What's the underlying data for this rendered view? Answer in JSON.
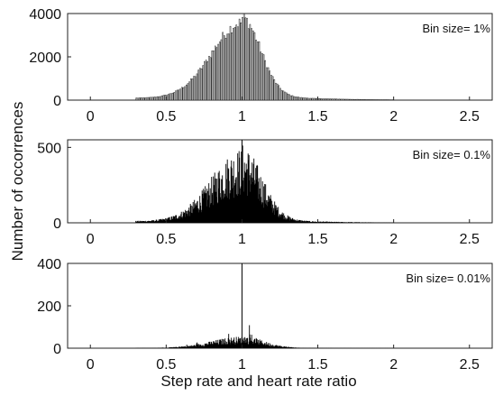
{
  "chart_data": [
    {
      "type": "bar",
      "annotation": "Bin size= 1%",
      "bin_width": 0.01,
      "xlim": [
        -0.15,
        2.65
      ],
      "ylim": [
        0,
        4000
      ],
      "x_ticks": [
        "0",
        "0.5",
        "1",
        "1.5",
        "2",
        "2.5"
      ],
      "y_ticks": [
        "0",
        "2000",
        "4000"
      ],
      "distribution": {
        "x_start": 0.3,
        "x_end": 2.0,
        "peak_x": 1.0,
        "peak_count": 3500,
        "left_spread": 0.2,
        "right_spread": 0.12,
        "tail_level": 300
      }
    },
    {
      "type": "bar",
      "annotation": "Bin size= 0.1%",
      "bin_width": 0.001,
      "xlim": [
        -0.15,
        2.65
      ],
      "ylim": [
        0,
        550
      ],
      "x_ticks": [
        "0",
        "0.5",
        "1",
        "1.5",
        "2",
        "2.5"
      ],
      "y_ticks": [
        "0",
        "500"
      ],
      "distribution": {
        "x_start": 0.3,
        "x_end": 2.0,
        "peak_x": 1.0,
        "peak_count": 360,
        "left_spread": 0.2,
        "right_spread": 0.13,
        "tail_level": 30,
        "spike_x": 1.0,
        "spike_count": 550
      }
    },
    {
      "type": "bar",
      "annotation": "Bin size= 0.01%",
      "bin_width": 0.0001,
      "xlim": [
        -0.15,
        2.65
      ],
      "ylim": [
        0,
        400
      ],
      "x_ticks": [
        "0",
        "0.5",
        "1",
        "1.5",
        "2",
        "2.5"
      ],
      "y_ticks": [
        "0",
        "200",
        "400"
      ],
      "distribution": {
        "x_start": 0.3,
        "x_end": 2.0,
        "peak_x": 1.0,
        "peak_count": 40,
        "left_spread": 0.2,
        "right_spread": 0.14,
        "tail_level": 3,
        "spike_x": 1.0,
        "spike_count": 400
      }
    }
  ],
  "xlabel": "Step rate and heart rate ratio",
  "ylabel": "Number of occorrences"
}
